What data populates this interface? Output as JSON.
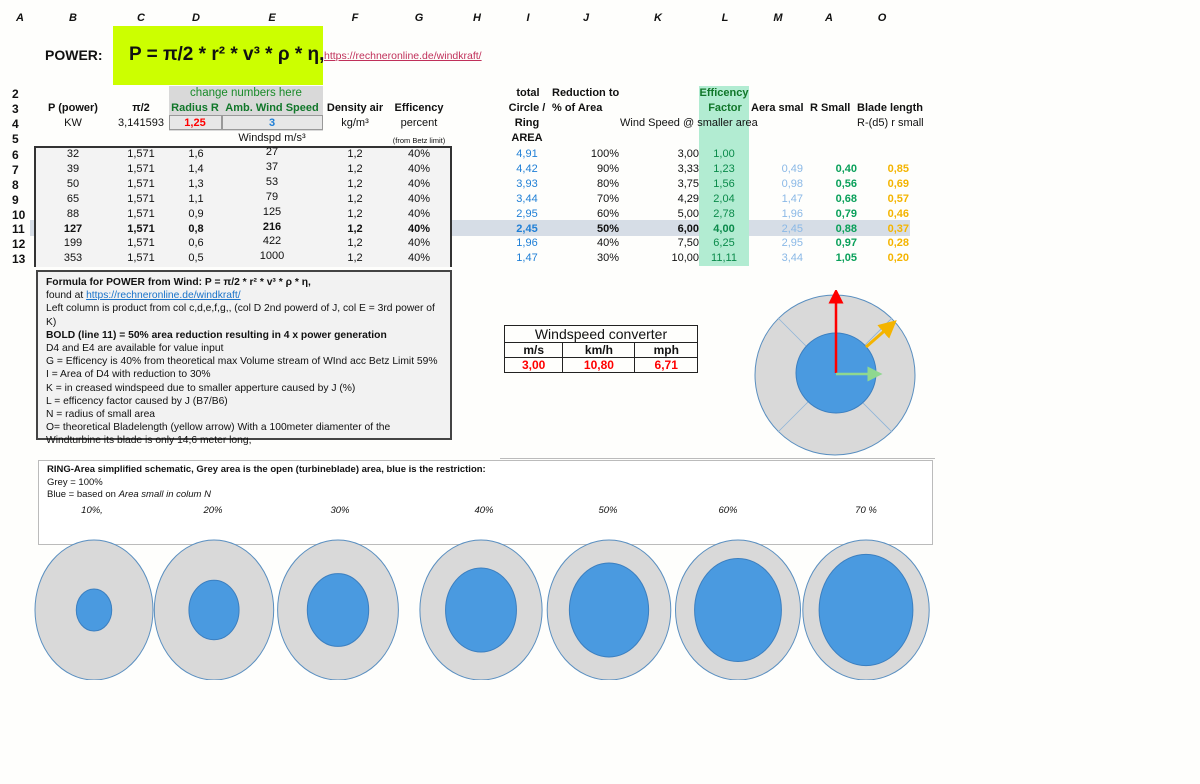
{
  "column_headers": [
    "A",
    "B",
    "C",
    "D",
    "E",
    "F",
    "G",
    "H",
    "I",
    "J",
    "K",
    "L",
    "M",
    "A",
    "O"
  ],
  "row_numbers": [
    "2",
    "3",
    "4",
    "5",
    "6",
    "7",
    "8",
    "9",
    "10",
    "11",
    "12",
    "13"
  ],
  "title": {
    "label": "POWER:",
    "formula": "P = π/2 * r² * v³ * ρ * η,",
    "link": "https://rechneronline.de/windkraft/"
  },
  "headers": {
    "change_note": "change numbers here",
    "p_power": "P (power)",
    "pi2": "π/2",
    "radius": "Radius R",
    "wind": "Amb. Wind Speed",
    "density": "Density air",
    "eff": "Efficency",
    "kw": "KW",
    "pi_value": "3,141593",
    "radius_input": "1,25",
    "wind_input": "3",
    "density_unit": "kg/m³",
    "percent": "percent",
    "windspd_unit": "Windspd m/s³",
    "betz": "(from Betz limit)",
    "total1": "total",
    "total2": "Circle /",
    "total3": "Ring",
    "total4": "AREA",
    "red1": "Reduction to",
    "red2": "% of Area",
    "wind_small": "Wind Speed @ smaller area",
    "eff1": "Efficency",
    "eff2": "Factor",
    "aera": "Aera smal",
    "rsmall": "R Small",
    "blade": "Blade length",
    "blade_sub": "R-(d5) r small"
  },
  "rows": [
    {
      "p": "32",
      "pi": "1,571",
      "r": "1,6",
      "v": "27",
      "d": "1,2",
      "e": "40%",
      "area": "4,91",
      "red": "100%",
      "ws": "3,00",
      "ef": "1,00",
      "as": "",
      "rs": "",
      "bl": ""
    },
    {
      "p": "39",
      "pi": "1,571",
      "r": "1,4",
      "v": "37",
      "d": "1,2",
      "e": "40%",
      "area": "4,42",
      "red": "90%",
      "ws": "3,33",
      "ef": "1,23",
      "as": "0,49",
      "rs": "0,40",
      "bl": "0,85"
    },
    {
      "p": "50",
      "pi": "1,571",
      "r": "1,3",
      "v": "53",
      "d": "1,2",
      "e": "40%",
      "area": "3,93",
      "red": "80%",
      "ws": "3,75",
      "ef": "1,56",
      "as": "0,98",
      "rs": "0,56",
      "bl": "0,69"
    },
    {
      "p": "65",
      "pi": "1,571",
      "r": "1,1",
      "v": "79",
      "d": "1,2",
      "e": "40%",
      "area": "3,44",
      "red": "70%",
      "ws": "4,29",
      "ef": "2,04",
      "as": "1,47",
      "rs": "0,68",
      "bl": "0,57"
    },
    {
      "p": "88",
      "pi": "1,571",
      "r": "0,9",
      "v": "125",
      "d": "1,2",
      "e": "40%",
      "area": "2,95",
      "red": "60%",
      "ws": "5,00",
      "ef": "2,78",
      "as": "1,96",
      "rs": "0,79",
      "bl": "0,46"
    },
    {
      "p": "127",
      "pi": "1,571",
      "r": "0,8",
      "v": "216",
      "d": "1,2",
      "e": "40%",
      "area": "2,45",
      "red": "50%",
      "ws": "6,00",
      "ef": "4,00",
      "as": "2,45",
      "rs": "0,88",
      "bl": "0,37"
    },
    {
      "p": "199",
      "pi": "1,571",
      "r": "0,6",
      "v": "422",
      "d": "1,2",
      "e": "40%",
      "area": "1,96",
      "red": "40%",
      "ws": "7,50",
      "ef": "6,25",
      "as": "2,95",
      "rs": "0,97",
      "bl": "0,28"
    },
    {
      "p": "353",
      "pi": "1,571",
      "r": "0,5",
      "v": "1000",
      "d": "1,2",
      "e": "40%",
      "area": "1,47",
      "red": "30%",
      "ws": "10,00",
      "ef": "11,11",
      "as": "3,44",
      "rs": "1,05",
      "bl": "0,20"
    }
  ],
  "notes": {
    "l1": "Formula for POWER from Wind:  P = π/2 * r² * v³ * ρ * η,",
    "l2a": "found  at ",
    "l2b": "https://rechneronline.de/windkraft/",
    "l3": "Left column is product from  col c,d,e,f,g,, (col D 2nd powerd of J, col E = 3rd power of K)",
    "l4": "BOLD (line 11) = 50% area reduction resulting in 4 x power generation",
    "l5": "D4 and E4 are available for value input",
    "l6": "G = Efficency is 40% from theoretical max  Volume stream of WInd acc Betz Limit 59%",
    "l7": "I = Area of D4 with reduction to  30%",
    "l8": "K = in creased windspeed due to smaller apperture caused by J (%)",
    "l9": "L = efficency factor caused by J (B7/B6)",
    "l10": "N = radius of small area",
    "l11": "O= theoretical Bladelength (yellow arrow) With a 100meter diamenter of the",
    "l12": "Windturbine its blade is only 14,6 meter long,"
  },
  "converter": {
    "title": "Windspeed converter",
    "h": [
      "m/s",
      "km/h",
      "mph"
    ],
    "v": [
      "3,00",
      "10,80",
      "6,71"
    ]
  },
  "ring": {
    "l1": "RING-Area simplified schematic, Grey area is the open (turbineblade) area, blue is the restriction:",
    "l2": "Grey = 100%",
    "l3a": "Blue = based on ",
    "l3b": "Area small in colum N",
    "labels": [
      "10%,",
      "20%",
      "30%",
      "40%",
      "50%",
      "60%",
      "70 %"
    ],
    "fractions": [
      0.1,
      0.2,
      0.3,
      0.4,
      0.5,
      0.6,
      0.7
    ]
  },
  "colors": {
    "blue": "#4a9ae0",
    "grey": "#d9d9d9",
    "formula_bg": "#ccff00",
    "eff_bg": "#b2ecd2"
  }
}
